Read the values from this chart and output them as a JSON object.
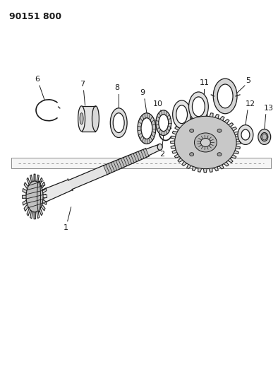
{
  "title_code": "90151 800",
  "bg_color": "#ffffff",
  "line_color": "#1a1a1a",
  "fig_width": 3.94,
  "fig_height": 5.33,
  "dpi": 100,
  "lw": 0.9
}
